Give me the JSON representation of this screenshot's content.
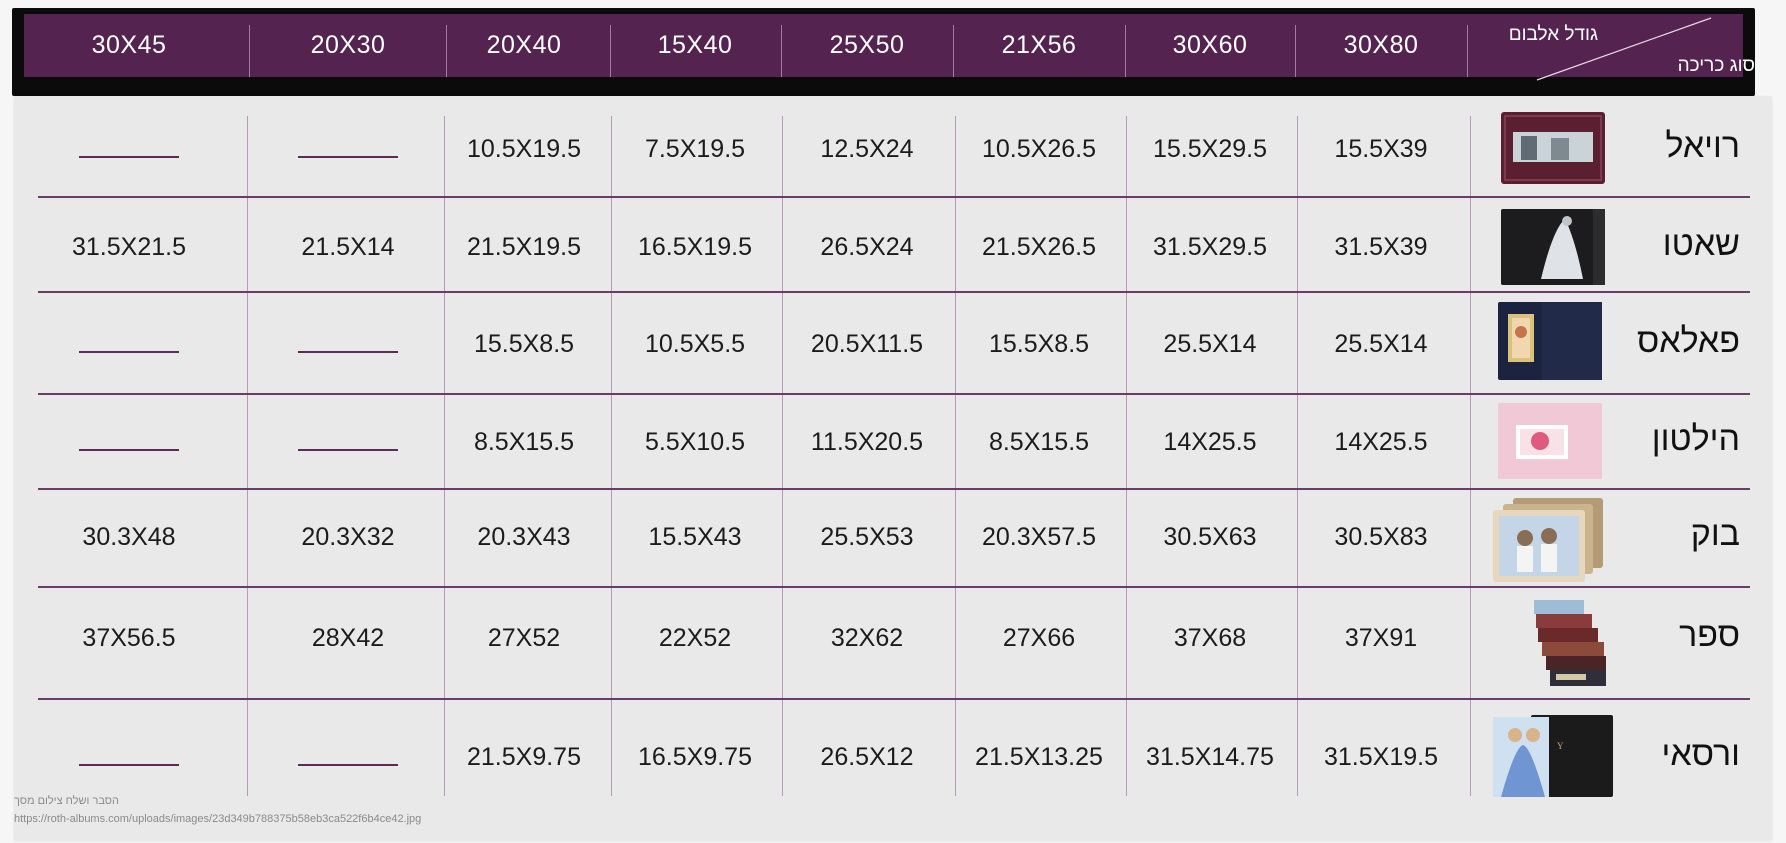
{
  "header": {
    "corner_top": "גודל אלבום",
    "corner_bottom": "סוג כריכה",
    "sizes": [
      "30X80",
      "30X60",
      "21X56",
      "25X50",
      "15X40",
      "20X40",
      "20X30",
      "30X45"
    ]
  },
  "rows": [
    {
      "name": "רויאל",
      "thumb": "royal-album-icon",
      "values": [
        "15.5X39",
        "15.5X29.5",
        "10.5X26.5",
        "12.5X24",
        "7.5X19.5",
        "10.5X19.5",
        "",
        ""
      ]
    },
    {
      "name": "שאטו",
      "thumb": "chateau-album-icon",
      "values": [
        "31.5X39",
        "31.5X29.5",
        "21.5X26.5",
        "26.5X24",
        "16.5X19.5",
        "21.5X19.5",
        "21.5X14",
        "31.5X21.5"
      ]
    },
    {
      "name": "פאלאס",
      "thumb": "palace-album-icon",
      "values": [
        "25.5X14",
        "25.5X14",
        "15.5X8.5",
        "20.5X11.5",
        "10.5X5.5",
        "15.5X8.5",
        "",
        ""
      ]
    },
    {
      "name": "הילטון",
      "thumb": "hilton-album-icon",
      "values": [
        "14X25.5",
        "14X25.5",
        "8.5X15.5",
        "11.5X20.5",
        "5.5X10.5",
        "8.5X15.5",
        "",
        ""
      ]
    },
    {
      "name": "בוק",
      "thumb": "book-album-icon",
      "values": [
        "30.5X83",
        "30.5X63",
        "20.3X57.5",
        "25.5X53",
        "15.5X43",
        "20.3X43",
        "20.3X32",
        "30.3X48"
      ]
    },
    {
      "name": "ספר",
      "thumb": "stacked-books-icon",
      "values": [
        "37X91",
        "37X68",
        "27X66",
        "32X62",
        "22X52",
        "27X52",
        "28X42",
        "37X56.5"
      ]
    },
    {
      "name": "ורסאי",
      "thumb": "versailles-album-icon",
      "values": [
        "31.5X19.5",
        "31.5X14.75",
        "21.5X13.25",
        "26.5X12",
        "16.5X9.75",
        "21.5X9.75",
        "",
        ""
      ]
    }
  ],
  "caption": {
    "line1": "הסבר ושלח צילום מסך",
    "line2": "https://roth-albums.com/uploads/images/23d349b788375b58eb3ca522f6b4ce42.jpg"
  },
  "colors": {
    "header_bg": "#542350",
    "row_line": "#6c3c69",
    "panel_bg": "#e9e9e9"
  }
}
